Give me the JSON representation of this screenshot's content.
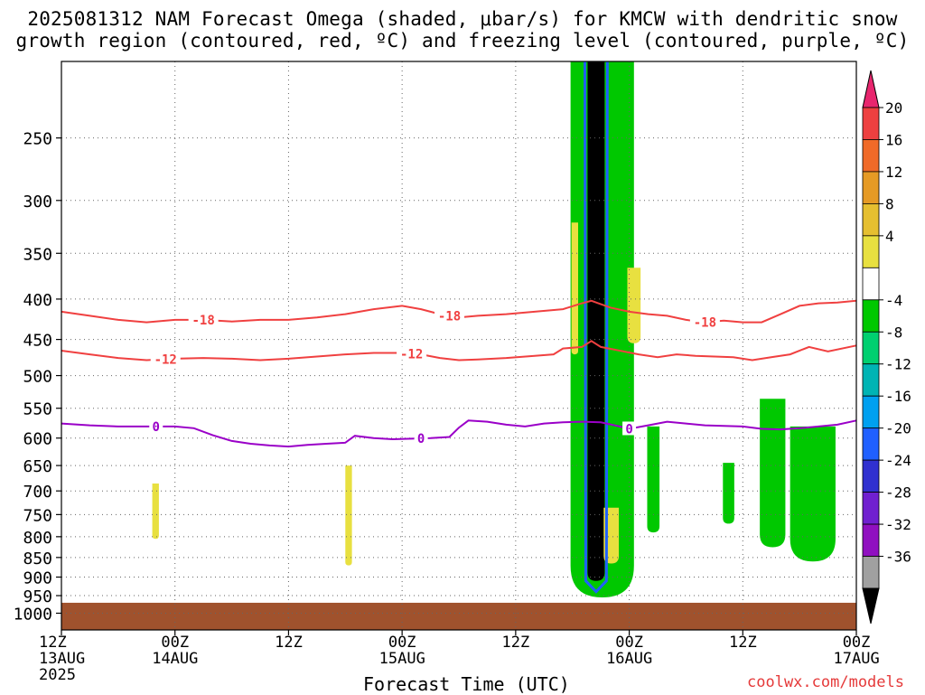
{
  "title_line1": "2025081312 NAM Forecast Omega (shaded, μbar/s) for KMCW with dendritic snow",
  "title_line2": "growth region (contoured, red, ºC) and freezing level (contoured, purple, ºC)",
  "credit": "coolwx.com/models",
  "chart_data": {
    "type": "heatmap",
    "title": "2025081312 NAM Forecast Omega (shaded, μbar/s) for KMCW with dendritic snow growth region (contoured, red, ºC) and freezing level (contoured, purple, ºC)",
    "xlabel": "Forecast Time (UTC)",
    "ylabel": "",
    "x_range_hours": [
      0,
      84
    ],
    "x_ticks": [
      {
        "hour": 0,
        "line1": "12Z",
        "line2": "13AUG",
        "line3": "2025"
      },
      {
        "hour": 12,
        "line1": "00Z",
        "line2": "14AUG",
        "line3": ""
      },
      {
        "hour": 24,
        "line1": "12Z",
        "line2": "",
        "line3": ""
      },
      {
        "hour": 36,
        "line1": "00Z",
        "line2": "15AUG",
        "line3": ""
      },
      {
        "hour": 48,
        "line1": "12Z",
        "line2": "",
        "line3": ""
      },
      {
        "hour": 60,
        "line1": "00Z",
        "line2": "16AUG",
        "line3": ""
      },
      {
        "hour": 72,
        "line1": "12Z",
        "line2": "",
        "line3": ""
      },
      {
        "hour": 84,
        "line1": "00Z",
        "line2": "17AUG",
        "line3": ""
      }
    ],
    "y_axis": {
      "scale": "log",
      "reversed": true,
      "range_hpa": [
        200,
        1050
      ],
      "ticks": [
        250,
        300,
        350,
        400,
        450,
        500,
        550,
        600,
        650,
        700,
        750,
        800,
        850,
        900,
        950,
        1000
      ]
    },
    "grid": true,
    "colorbar": {
      "placement": "right",
      "labels": [
        "20",
        "16",
        "12",
        "8",
        "4",
        "-4",
        "-8",
        "-12",
        "-16",
        "-20",
        "-24",
        "-28",
        "-32",
        "-36"
      ],
      "colors": [
        "#e8266e",
        "#ee4040",
        "#f06a28",
        "#e59a25",
        "#e5bf30",
        "#e8e040",
        "#ffffff",
        "#00c800",
        "#00d070",
        "#00b4b4",
        "#00a0f0",
        "#2060ff",
        "#3030d0",
        "#7020d0",
        "#9010c0",
        "#a0a0a0",
        "#000000"
      ]
    },
    "contours": [
      {
        "label": "-18",
        "color": "#f04040",
        "points": [
          [
            0,
            415
          ],
          [
            3,
            420
          ],
          [
            6,
            425
          ],
          [
            9,
            428
          ],
          [
            12,
            425
          ],
          [
            15,
            425
          ],
          [
            18,
            427
          ],
          [
            21,
            425
          ],
          [
            24,
            425
          ],
          [
            27,
            422
          ],
          [
            30,
            418
          ],
          [
            33,
            412
          ],
          [
            36,
            408
          ],
          [
            38,
            412
          ],
          [
            40,
            418
          ],
          [
            42,
            422
          ],
          [
            44,
            420
          ],
          [
            47,
            418
          ],
          [
            50,
            415
          ],
          [
            53,
            412
          ],
          [
            55,
            405
          ],
          [
            56,
            402
          ],
          [
            58,
            410
          ],
          [
            60,
            415
          ],
          [
            62,
            418
          ],
          [
            64,
            420
          ],
          [
            66,
            425
          ],
          [
            68,
            428
          ],
          [
            70,
            426
          ],
          [
            72,
            428
          ],
          [
            74,
            428
          ],
          [
            76,
            418
          ],
          [
            78,
            408
          ],
          [
            80,
            405
          ],
          [
            82,
            404
          ],
          [
            84,
            402
          ]
        ],
        "labels_at": [
          15,
          41,
          68
        ]
      },
      {
        "label": "-12",
        "color": "#f04040",
        "points": [
          [
            0,
            465
          ],
          [
            3,
            470
          ],
          [
            6,
            475
          ],
          [
            9,
            478
          ],
          [
            12,
            476
          ],
          [
            15,
            475
          ],
          [
            18,
            476
          ],
          [
            21,
            478
          ],
          [
            24,
            476
          ],
          [
            27,
            473
          ],
          [
            30,
            470
          ],
          [
            33,
            468
          ],
          [
            36,
            468
          ],
          [
            38,
            470
          ],
          [
            40,
            475
          ],
          [
            42,
            478
          ],
          [
            44,
            477
          ],
          [
            47,
            475
          ],
          [
            50,
            472
          ],
          [
            52,
            470
          ],
          [
            53,
            462
          ],
          [
            55,
            460
          ],
          [
            56,
            452
          ],
          [
            57,
            460
          ],
          [
            59,
            465
          ],
          [
            61,
            470
          ],
          [
            63,
            474
          ],
          [
            65,
            470
          ],
          [
            67,
            472
          ],
          [
            69,
            473
          ],
          [
            71,
            474
          ],
          [
            73,
            478
          ],
          [
            75,
            474
          ],
          [
            77,
            470
          ],
          [
            79,
            460
          ],
          [
            81,
            466
          ],
          [
            84,
            458
          ]
        ],
        "labels_at": [
          11,
          37
        ]
      },
      {
        "label": "0",
        "color": "#9a00c8",
        "points": [
          [
            0,
            575
          ],
          [
            3,
            578
          ],
          [
            6,
            580
          ],
          [
            9,
            580
          ],
          [
            12,
            580
          ],
          [
            14,
            583
          ],
          [
            16,
            595
          ],
          [
            18,
            605
          ],
          [
            20,
            610
          ],
          [
            22,
            613
          ],
          [
            24,
            615
          ],
          [
            26,
            612
          ],
          [
            28,
            610
          ],
          [
            30,
            608
          ],
          [
            31,
            596
          ],
          [
            33,
            600
          ],
          [
            35,
            602
          ],
          [
            37,
            601
          ],
          [
            39,
            600
          ],
          [
            41,
            598
          ],
          [
            42,
            582
          ],
          [
            43,
            570
          ],
          [
            45,
            572
          ],
          [
            47,
            577
          ],
          [
            49,
            580
          ],
          [
            51,
            575
          ],
          [
            53,
            573
          ],
          [
            55,
            572
          ],
          [
            57,
            573
          ],
          [
            59,
            580
          ],
          [
            60,
            584
          ],
          [
            62,
            578
          ],
          [
            64,
            572
          ],
          [
            66,
            575
          ],
          [
            68,
            578
          ],
          [
            70,
            579
          ],
          [
            72,
            580
          ],
          [
            74,
            584
          ],
          [
            76,
            585
          ],
          [
            78,
            583
          ],
          [
            80,
            580
          ],
          [
            82,
            577
          ],
          [
            84,
            570
          ]
        ],
        "labels_at": [
          10,
          38,
          60
        ]
      }
    ],
    "shaded_regions": [
      {
        "value": "<-36 core",
        "color": "#000000",
        "x": [
          55.6,
          57.4
        ],
        "p": [
          200,
          910
        ]
      },
      {
        "value": "-8 to -4",
        "color": "#00c800",
        "x": [
          53.8,
          60.5
        ],
        "p": [
          200,
          955
        ]
      },
      {
        "value": "4 to 8",
        "color": "#e8e040",
        "x": [
          57.3,
          58.9
        ],
        "p": [
          735,
          865
        ]
      },
      {
        "value": "4 to 8",
        "color": "#e8e040",
        "x": [
          53.9,
          54.6
        ],
        "p": [
          320,
          470
        ]
      },
      {
        "value": "4 to 8",
        "color": "#e8e040",
        "x": [
          59.8,
          61.2
        ],
        "p": [
          365,
          455
        ]
      },
      {
        "value": "4 to 8",
        "color": "#e8e040",
        "x": [
          30.0,
          30.7
        ],
        "p": [
          650,
          870
        ]
      },
      {
        "value": "4 to 8",
        "color": "#e8e040",
        "x": [
          9.6,
          10.3
        ],
        "p": [
          685,
          805
        ]
      },
      {
        "value": "-8 to -4",
        "color": "#00c800",
        "x": [
          61.9,
          63.2
        ],
        "p": [
          580,
          790
        ]
      },
      {
        "value": "-8 to -4",
        "color": "#00c800",
        "x": [
          69.9,
          71.1
        ],
        "p": [
          645,
          770
        ]
      },
      {
        "value": "-8 to -4",
        "color": "#00c800",
        "x": [
          73.8,
          76.5
        ],
        "p": [
          535,
          825
        ]
      },
      {
        "value": "-8 to -4",
        "color": "#00c800",
        "x": [
          77.0,
          81.8
        ],
        "p": [
          580,
          860
        ]
      }
    ],
    "terrain": {
      "color": "#a0522d",
      "p_top": 970
    }
  }
}
